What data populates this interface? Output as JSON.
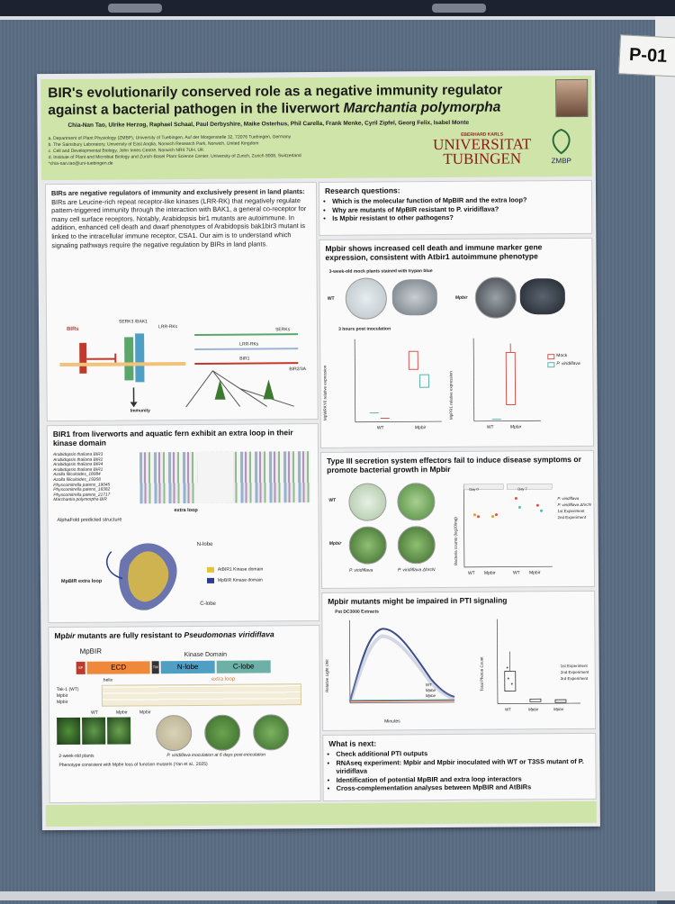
{
  "board_id": "P-01",
  "header": {
    "title_line1": "BIR's evolutionarily conserved role as a negative immunity regulator",
    "title_line2_prefix": "against a bacterial pathogen in the liverwort ",
    "title_line2_italic": "Marchantia polymorpha",
    "authors": "Chia-Nan Tao, Ulrike Herzog, Raphael Schaal, Paul Derbyshire, Maike Osterhus, Phil Carella, Frank Menke, Cyril Zipfel, Georg Felix, Isabel Monte",
    "affiliations": [
      "a. Department of Plant Physiology (ZMBP), University of Tuebingen, Auf der Morgenstelle 32, 72076 Tuebingen, Germany",
      "b. The Sainsbury Laboratory, University of East Anglia, Norwich Research Park, Norwich, United Kingdom",
      "c. Cell and Developmental Biology, John Innes Centre, Norwich NR4 7UH, UK",
      "d. Institute of Plant and Microbial Biology and Zurich-Basel Plant Science Center, University of Zurich, Zurich 8008, Switzerland",
      "*chia-nan.tao@uni-tuebingen.de"
    ],
    "uni_small": "EBERHARD KARLS",
    "uni_line1": "UNIVERSITAT",
    "uni_line2": "TUBINGEN",
    "zmbp": "ZMBP"
  },
  "intro": {
    "bold": "BIRs are negative regulators of immunity and exclusively present in land plants:",
    "text": " BIRs are Leucine-rich repeat receptor-like kinases (LRR-RK) that negatively regulate pattern-triggered immunity through the interaction with BAK1, a general co-receptor for many cell surface receptors. Notably, Arabidopsis bir1 mutants are autoimmune. In addition, enhanced cell death and dwarf phenotypes of Arabidopsis bak1bir3 mutant is linked to the intracellular immune receptor, CSA1. Our aim is to understand which signaling pathways require the negative regulation by BIRs in land plants.",
    "fig_labels": {
      "birs": "BIRs",
      "serk3": "SERK3 /BAK1",
      "lrr": "LRR-RKs",
      "immunity": "Immunity",
      "serks": "SERKs",
      "lrrrks": "LRR-RKs",
      "bir1": "BIR1",
      "bir23a": "BIR2/3A"
    }
  },
  "kinase": {
    "title": "BIR1 from liverworts and aquatic fern exhibit an extra loop in their kinase domain",
    "species": [
      "Arabidopsis thaliana BIR3",
      "Arabidopsis thaliana BIR2",
      "Arabidopsis thaliana BIR4",
      "Arabidopsis thaliana BIR1",
      "Azolla filiculoides_18084",
      "Azolla filiculoides_19268",
      "Physcomitrella patens_19045",
      "Physcomitrella patens_18382",
      "Physcomitrella patens_21717",
      "Marchantia polymorpha BIR"
    ],
    "extra_loop": "extra loop",
    "alphafold": "AlphaFold predicted structure",
    "nlobe": "N-lobe",
    "clobe": "C-lobe",
    "mp_loop": "MpBIR extra loop",
    "legend": [
      "AtBIR1 Kinase domain",
      "MpBIR Kinase domain"
    ],
    "legend_colors": [
      "#e8c33a",
      "#2c3b8f"
    ]
  },
  "mutants": {
    "title_prefix": "Mp",
    "title_italic": "bir",
    "title_rest": " mutants are fully resistant to ",
    "title_species": "Pseudomonas viridiflava",
    "gene": "MpBIR",
    "kinase_domain": "Kinase Domain",
    "ecd": "ECD",
    "nlobe": "N-lobe",
    "clobe": "C-lobe",
    "sp": "SP",
    "tm": "TM",
    "helix": "helix",
    "extra_loop": "extra loop",
    "rows": [
      "Tak-1 (WT)",
      "Mpbir",
      "Mpbir"
    ],
    "plants_caption": "2-week-old plants",
    "inoc_caption": "P. viridiflava inoculation at 6 days post-inoculation",
    "phenotype": "Phenotype consistent with Mpbir loss of function mutants (Yan et al., 2025)",
    "col_labels": [
      "WT",
      "Mpbir",
      "Mpbir"
    ]
  },
  "questions": {
    "title": "Research questions:",
    "items": [
      "Which is the molecular function of MpBIR and the extra loop?",
      "Why are mutants of MpBIR resistant to P. viridiflava?",
      "Is Mpbir resistant to other pathogens?"
    ]
  },
  "celldeath": {
    "title": "Mpbir shows increased cell death and immune marker gene expression, consistent with Atbir1 autoimmune phenotype",
    "stain": "3-week-old mock plants stained with trypan blue",
    "wt": "WT",
    "mpbir": "Mpbir",
    "hpi": "3 hours post inoculation",
    "ylab1": "MpWRKY6 relative expression",
    "ylab2": "MpPR1 relative expression",
    "legend": [
      "Mock",
      "P. viridiflava"
    ],
    "legend_colors": [
      "#d9534f",
      "#5bb5b0"
    ]
  },
  "t3ss": {
    "title": "Type III secretion system effectors fail to induce disease symptoms or promote bacterial growth in Mpbir",
    "wt": "WT",
    "mpbir": "Mpbir",
    "pv": "P. viridiflava",
    "hrcn": "P. viridiflava ΔhrcN",
    "ylab": "Bacteria counts (log10/mg)",
    "day0": "Day 0",
    "day7": "Day 7",
    "legend": [
      "P. viridiflava",
      "P. viridiflava ΔhrcN",
      "1st Experiment",
      "2nd Experiment"
    ],
    "xticks": [
      "WT",
      "Mpbir",
      "WT",
      "Mpbir"
    ]
  },
  "pti": {
    "title": "Mpbir mutants might be impaired in PTI signaling",
    "extract": "Pst DC3000 Extracts",
    "ylab": "Relative Light Unit",
    "xlab": "Minutes",
    "xticks": [
      "0",
      "25",
      "50",
      "75",
      "100",
      "125"
    ],
    "yticks": [
      "0",
      "1000",
      "2000"
    ],
    "series": [
      "WT",
      "Mpbir",
      "Mpbir"
    ],
    "ylab2": "Total Photon Count",
    "yticks2": [
      "0",
      "250000",
      "500000",
      "750000",
      "1000000"
    ],
    "legend2": [
      "1st Experiment",
      "2nd Experiment",
      "3rd Experiment"
    ],
    "xticks2": [
      "WT",
      "Mpbir",
      "Mpbir"
    ]
  },
  "next": {
    "title": "What is next:",
    "items": [
      "Check additional PTI outputs",
      "RNAseq experiment: Mpbir and Mpbir inoculated with WT or T3SS mutant of P. viridiflava",
      "Identification of potential MpBIR and extra loop interactors",
      "Cross-complementation analyses between MpBIR and AtBIRs"
    ]
  },
  "colors": {
    "header_bg": "#cfe4a8",
    "board": "#5b6d84",
    "poster": "#e9eaec",
    "ecd": "#f0883a",
    "sp": "#c0392b",
    "nlobe": "#4f9ec4",
    "clobe": "#6db0a8"
  }
}
